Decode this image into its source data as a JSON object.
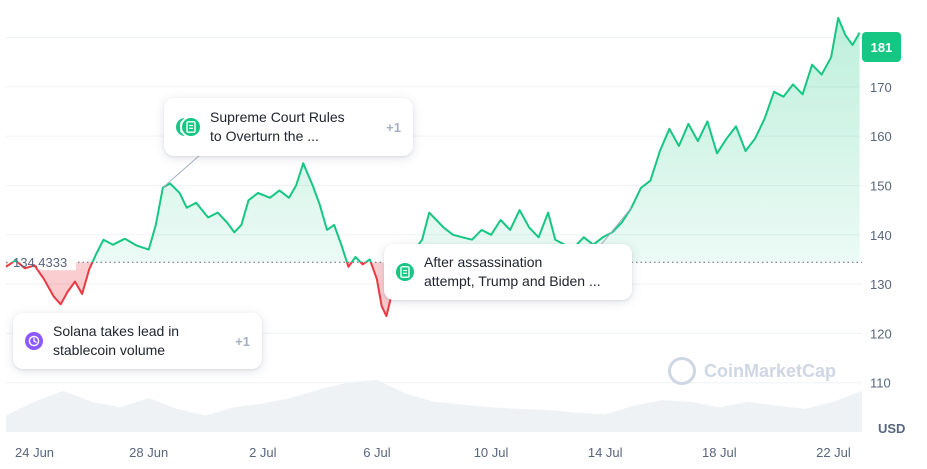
{
  "chart_data": {
    "type": "area",
    "title": "",
    "currency": "USD",
    "current_price": "181",
    "reference_price": 134.4333,
    "reference_label": "134.4333",
    "ylim": [
      100,
      186
    ],
    "y_ticks": [
      110,
      120,
      130,
      140,
      150,
      160,
      170
    ],
    "x_ticks": [
      "24 Jun",
      "28 Jun",
      "2 Jul",
      "6 Jul",
      "10 Jul",
      "14 Jul",
      "18 Jul",
      "22 Jul"
    ],
    "x_range": [
      "2024-06-23T00:00",
      "2024-07-23T00:00"
    ],
    "colors": {
      "up": "#16c784",
      "down": "#ea3943"
    },
    "series": [
      {
        "values": [
          [
            "2024-06-23T00:00",
            133.5
          ],
          [
            "2024-06-23T08:00",
            134.8
          ],
          [
            "2024-06-23T16:00",
            133.2
          ],
          [
            "2024-06-24T00:00",
            133.8
          ],
          [
            "2024-06-24T08:00",
            131.0
          ],
          [
            "2024-06-24T16:00",
            127.5
          ],
          [
            "2024-06-24T22:00",
            125.9
          ],
          [
            "2024-06-25T04:00",
            128.5
          ],
          [
            "2024-06-25T10:00",
            130.5
          ],
          [
            "2024-06-25T16:00",
            128.0
          ],
          [
            "2024-06-25T22:00",
            133.0
          ],
          [
            "2024-06-26T04:00",
            136.2
          ],
          [
            "2024-06-26T10:00",
            139.0
          ],
          [
            "2024-06-26T18:00",
            138.0
          ],
          [
            "2024-06-27T04:00",
            139.2
          ],
          [
            "2024-06-27T14:00",
            137.8
          ],
          [
            "2024-06-28T00:00",
            137.0
          ],
          [
            "2024-06-28T06:00",
            142.0
          ],
          [
            "2024-06-28T12:00",
            149.6
          ],
          [
            "2024-06-28T18:00",
            150.4
          ],
          [
            "2024-06-29T02:00",
            148.5
          ],
          [
            "2024-06-29T08:00",
            145.5
          ],
          [
            "2024-06-29T16:00",
            146.5
          ],
          [
            "2024-06-30T02:00",
            143.5
          ],
          [
            "2024-06-30T10:00",
            144.5
          ],
          [
            "2024-06-30T18:00",
            142.5
          ],
          [
            "2024-07-01T00:00",
            140.5
          ],
          [
            "2024-07-01T06:00",
            142.0
          ],
          [
            "2024-07-01T12:00",
            147.0
          ],
          [
            "2024-07-01T20:00",
            148.5
          ],
          [
            "2024-07-02T06:00",
            147.5
          ],
          [
            "2024-07-02T14:00",
            149.0
          ],
          [
            "2024-07-02T22:00",
            147.5
          ],
          [
            "2024-07-03T04:00",
            150.0
          ],
          [
            "2024-07-03T10:00",
            154.5
          ],
          [
            "2024-07-03T18:00",
            150.0
          ],
          [
            "2024-07-04T00:00",
            146.0
          ],
          [
            "2024-07-04T06:00",
            141.0
          ],
          [
            "2024-07-04T12:00",
            142.0
          ],
          [
            "2024-07-04T18:00",
            138.0
          ],
          [
            "2024-07-05T00:00",
            133.5
          ],
          [
            "2024-07-05T06:00",
            135.5
          ],
          [
            "2024-07-05T12:00",
            134.0
          ],
          [
            "2024-07-05T18:00",
            135.0
          ],
          [
            "2024-07-06T00:00",
            131.0
          ],
          [
            "2024-07-06T04:00",
            125.5
          ],
          [
            "2024-07-06T08:00",
            123.5
          ],
          [
            "2024-07-06T14:00",
            129.5
          ],
          [
            "2024-07-06T20:00",
            131.5
          ],
          [
            "2024-07-07T02:00",
            134.8
          ],
          [
            "2024-07-07T08:00",
            137.0
          ],
          [
            "2024-07-07T14:00",
            139.0
          ],
          [
            "2024-07-07T20:00",
            144.5
          ],
          [
            "2024-07-08T02:00",
            143.0
          ],
          [
            "2024-07-08T08:00",
            141.5
          ],
          [
            "2024-07-08T16:00",
            140.0
          ],
          [
            "2024-07-09T00:00",
            139.5
          ],
          [
            "2024-07-09T08:00",
            139.0
          ],
          [
            "2024-07-09T16:00",
            141.0
          ],
          [
            "2024-07-10T00:00",
            140.0
          ],
          [
            "2024-07-10T08:00",
            143.0
          ],
          [
            "2024-07-10T16:00",
            141.0
          ],
          [
            "2024-07-11T00:00",
            145.0
          ],
          [
            "2024-07-11T08:00",
            141.5
          ],
          [
            "2024-07-11T16:00",
            139.5
          ],
          [
            "2024-07-12T00:00",
            144.5
          ],
          [
            "2024-07-12T06:00",
            139.0
          ],
          [
            "2024-07-12T14:00",
            138.0
          ],
          [
            "2024-07-12T22:00",
            137.5
          ],
          [
            "2024-07-13T06:00",
            139.5
          ],
          [
            "2024-07-13T14:00",
            138.0
          ],
          [
            "2024-07-13T22:00",
            139.5
          ],
          [
            "2024-07-14T06:00",
            140.5
          ],
          [
            "2024-07-14T14:00",
            142.5
          ],
          [
            "2024-07-14T22:00",
            145.5
          ],
          [
            "2024-07-15T06:00",
            149.5
          ],
          [
            "2024-07-15T14:00",
            151.0
          ],
          [
            "2024-07-15T22:00",
            157.0
          ],
          [
            "2024-07-16T06:00",
            161.5
          ],
          [
            "2024-07-16T14:00",
            158.0
          ],
          [
            "2024-07-16T22:00",
            162.5
          ],
          [
            "2024-07-17T06:00",
            159.0
          ],
          [
            "2024-07-17T14:00",
            163.0
          ],
          [
            "2024-07-17T22:00",
            156.5
          ],
          [
            "2024-07-18T06:00",
            159.5
          ],
          [
            "2024-07-18T14:00",
            162.0
          ],
          [
            "2024-07-18T22:00",
            157.0
          ],
          [
            "2024-07-19T06:00",
            159.5
          ],
          [
            "2024-07-19T14:00",
            163.5
          ],
          [
            "2024-07-19T22:00",
            169.0
          ],
          [
            "2024-07-20T06:00",
            168.0
          ],
          [
            "2024-07-20T14:00",
            170.5
          ],
          [
            "2024-07-20T22:00",
            168.5
          ],
          [
            "2024-07-21T06:00",
            174.5
          ],
          [
            "2024-07-21T14:00",
            172.5
          ],
          [
            "2024-07-21T22:00",
            176.0
          ],
          [
            "2024-07-22T04:00",
            184.0
          ],
          [
            "2024-07-22T10:00",
            180.5
          ],
          [
            "2024-07-22T16:00",
            178.5
          ],
          [
            "2024-07-22T22:00",
            181.0
          ]
        ]
      }
    ],
    "volume": [
      [
        "2024-06-23T00:00",
        0.3
      ],
      [
        "2024-06-24T00:00",
        0.55
      ],
      [
        "2024-06-25T00:00",
        0.75
      ],
      [
        "2024-06-26T00:00",
        0.55
      ],
      [
        "2024-06-27T00:00",
        0.45
      ],
      [
        "2024-06-28T00:00",
        0.62
      ],
      [
        "2024-06-29T00:00",
        0.42
      ],
      [
        "2024-06-30T00:00",
        0.3
      ],
      [
        "2024-07-01T00:00",
        0.45
      ],
      [
        "2024-07-02T00:00",
        0.52
      ],
      [
        "2024-07-03T00:00",
        0.62
      ],
      [
        "2024-07-04T00:00",
        0.78
      ],
      [
        "2024-07-05T00:00",
        0.9
      ],
      [
        "2024-07-06T00:00",
        0.95
      ],
      [
        "2024-07-07T00:00",
        0.7
      ],
      [
        "2024-07-08T00:00",
        0.55
      ],
      [
        "2024-07-09T00:00",
        0.5
      ],
      [
        "2024-07-10T00:00",
        0.45
      ],
      [
        "2024-07-11T00:00",
        0.42
      ],
      [
        "2024-07-12T00:00",
        0.4
      ],
      [
        "2024-07-13T00:00",
        0.35
      ],
      [
        "2024-07-14T00:00",
        0.32
      ],
      [
        "2024-07-15T00:00",
        0.48
      ],
      [
        "2024-07-16T00:00",
        0.58
      ],
      [
        "2024-07-17T00:00",
        0.55
      ],
      [
        "2024-07-18T00:00",
        0.45
      ],
      [
        "2024-07-19T00:00",
        0.55
      ],
      [
        "2024-07-20T00:00",
        0.48
      ],
      [
        "2024-07-21T00:00",
        0.42
      ],
      [
        "2024-07-22T00:00",
        0.55
      ],
      [
        "2024-07-23T00:00",
        0.75
      ]
    ],
    "annotations": [
      {
        "text_line1": "Supreme Court Rules",
        "text_line2": "to Overturn the ...",
        "count": "+1",
        "icon": "document-icon",
        "anchor": "2024-06-28T12:00"
      },
      {
        "text_line1": "After assassination",
        "text_line2": "attempt, Trump and Biden ...",
        "count": "",
        "icon": "document-icon",
        "anchor": "2024-07-14T22:00"
      },
      {
        "text_line1": "Solana takes lead in",
        "text_line2": "stablecoin volume",
        "count": "+1",
        "icon": "clock-icon",
        "anchor": "2024-06-23T00:00"
      }
    ],
    "watermark": "CoinMarketCap"
  }
}
